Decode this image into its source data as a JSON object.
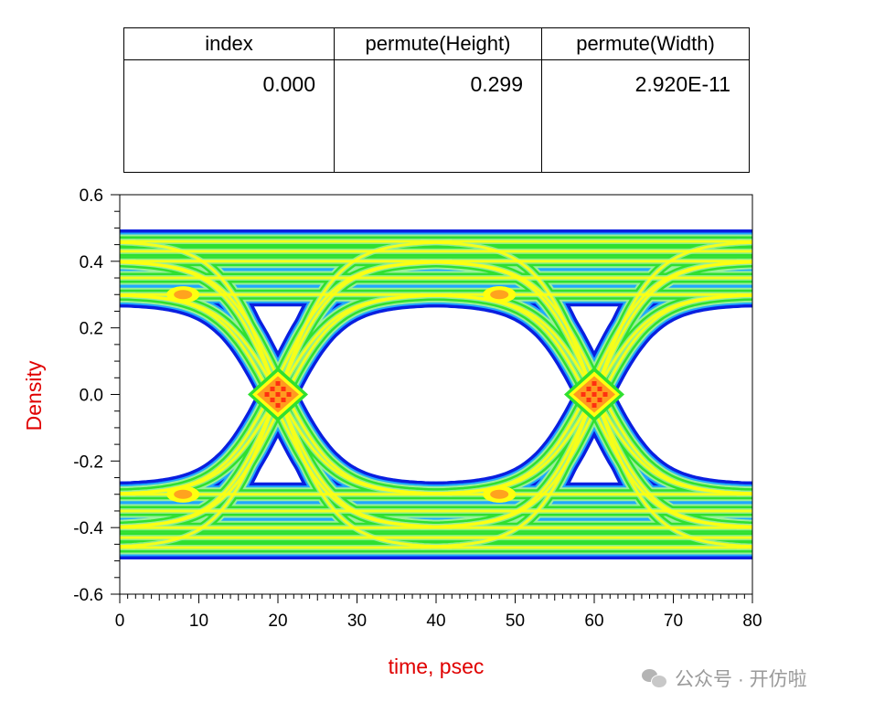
{
  "table": {
    "headers": [
      "index",
      "permute(Height)",
      "permute(Width)"
    ],
    "rows": [
      [
        "0.000",
        "0.299",
        "2.920E-11"
      ]
    ]
  },
  "chart_data": {
    "type": "heatmap",
    "subtype": "eye-diagram density",
    "title": "",
    "xlabel": "time, psec",
    "ylabel": "Density",
    "xlim": [
      0,
      80
    ],
    "ylim": [
      -0.6,
      0.6
    ],
    "x_ticks": [
      0,
      10,
      20,
      30,
      40,
      50,
      60,
      70,
      80
    ],
    "y_ticks": [
      -0.6,
      -0.4,
      -0.2,
      0.0,
      0.2,
      0.4,
      0.6
    ],
    "x_tick_labels": [
      "0",
      "10",
      "20",
      "30",
      "40",
      "50",
      "60",
      "70",
      "80"
    ],
    "y_tick_labels": [
      "-0.6",
      "-0.4",
      "-0.2",
      "0.0",
      "0.2",
      "0.4",
      "0.6"
    ],
    "unit_interval_ps": 40,
    "crossings_ps": [
      20,
      60
    ],
    "crossing_level": 0.0,
    "high_levels": [
      0.3,
      0.4
    ],
    "low_levels": [
      -0.3,
      -0.4
    ],
    "trace_envelope": [
      -0.49,
      0.49
    ],
    "eye_opening": {
      "height": 0.299,
      "width_ps": 29.2
    },
    "density_colormap": [
      "#0a1fe0",
      "#20a8ff",
      "#2fe02f",
      "#9af09a",
      "#ffff10",
      "#ff9a20",
      "#ff3010"
    ],
    "axis_label_color": "#e00000",
    "grid": false
  },
  "watermark": {
    "text": "公众号 · 开仿啦",
    "icon": "wechat-icon"
  }
}
